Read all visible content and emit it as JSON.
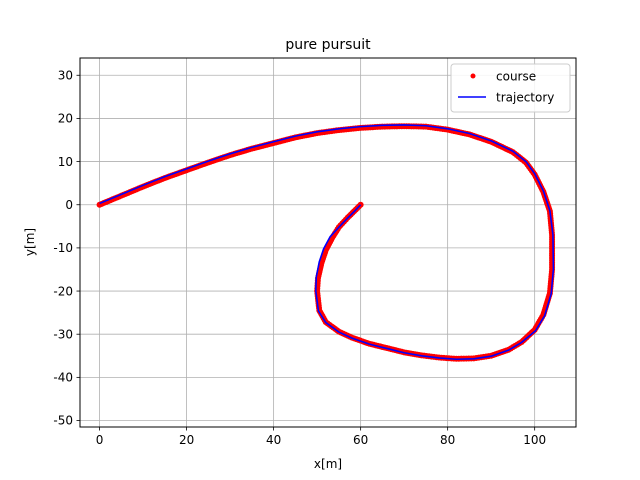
{
  "chart_data": {
    "type": "line",
    "title": "pure pursuit",
    "xlabel": "x[m]",
    "ylabel": "y[m]",
    "xlim": [
      -4.5,
      109.5
    ],
    "ylim": [
      -51.5,
      34
    ],
    "xticks": [
      0,
      20,
      40,
      60,
      80,
      100
    ],
    "yticks": [
      -50,
      -40,
      -30,
      -20,
      -10,
      0,
      10,
      20,
      30
    ],
    "grid": true,
    "legend_position": "top-right",
    "series": [
      {
        "name": "course",
        "style": "points",
        "color": "#ff0000",
        "x": [
          0,
          5,
          10,
          15,
          20,
          25,
          30,
          35,
          40,
          45,
          50,
          55,
          60,
          65,
          70,
          75,
          80,
          85,
          90,
          95,
          98,
          100,
          102,
          103.5,
          104,
          104,
          103.5,
          102,
          100,
          97,
          94,
          90,
          86,
          82,
          78,
          74,
          70,
          66,
          62,
          58,
          55,
          52,
          50.5,
          50,
          50.2,
          51,
          52,
          53.5,
          55,
          57,
          58.5,
          60
        ],
        "y": [
          0,
          2.1,
          4.2,
          6.2,
          8,
          9.8,
          11.5,
          13,
          14.3,
          15.6,
          16.6,
          17.3,
          17.8,
          18.1,
          18.2,
          18.1,
          17.4,
          16.3,
          14.6,
          12.2,
          9.8,
          7,
          3,
          -1.5,
          -7,
          -15,
          -20.5,
          -25.5,
          -29,
          -31.8,
          -33.6,
          -35,
          -35.6,
          -35.7,
          -35.4,
          -34.9,
          -34.2,
          -33.2,
          -32.2,
          -30.8,
          -29.4,
          -27.2,
          -24.5,
          -20,
          -17,
          -13.5,
          -10.5,
          -7.6,
          -5.2,
          -3,
          -1.5,
          0
        ]
      },
      {
        "name": "trajectory",
        "style": "line",
        "color": "#0000ff",
        "x": [
          0,
          5,
          10,
          15,
          20,
          25,
          30,
          35,
          40,
          45,
          50,
          55,
          60,
          65,
          70,
          75,
          80,
          85,
          90,
          95,
          98,
          100,
          102,
          103.5,
          104.2,
          104.3,
          103.8,
          102.3,
          100.2,
          97,
          94,
          90,
          86,
          82,
          78,
          74,
          70,
          66,
          62,
          58,
          55,
          52,
          50.3,
          49.7,
          49.8,
          50.5,
          51.5,
          53,
          55,
          57,
          58.5,
          60
        ],
        "y": [
          0.3,
          2.4,
          4.5,
          6.5,
          8.3,
          10.1,
          11.8,
          13.3,
          14.6,
          15.9,
          16.9,
          17.6,
          18.1,
          18.4,
          18.5,
          18.3,
          17.6,
          16.5,
          14.8,
          12.4,
          10,
          7.2,
          3.2,
          -1.4,
          -7,
          -15,
          -20.6,
          -25.7,
          -29.2,
          -31.9,
          -33.7,
          -35.1,
          -35.7,
          -35.8,
          -35.5,
          -35,
          -34.3,
          -33.3,
          -32.3,
          -30.9,
          -29.5,
          -27.3,
          -24.6,
          -20,
          -16.8,
          -13.2,
          -10.2,
          -7.4,
          -5.2,
          -3.1,
          -1.6,
          0
        ]
      }
    ]
  }
}
